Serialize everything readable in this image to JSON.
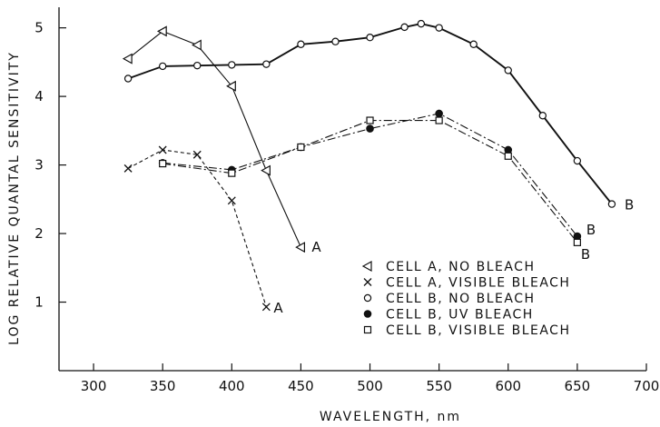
{
  "chart_data": {
    "type": "line",
    "xlabel": "WAVELENGTH, nm",
    "ylabel": "LOG RELATIVE QUANTAL SENSITIVITY",
    "xlim": [
      275,
      700
    ],
    "ylim": [
      0,
      5.3
    ],
    "xticks": [
      300,
      350,
      400,
      450,
      500,
      550,
      600,
      650,
      700
    ],
    "yticks": [
      1,
      2,
      3,
      4,
      5
    ],
    "grid": false,
    "legend_position": "bottom-right",
    "series": [
      {
        "name": "CELL A, NO BLEACH",
        "marker": "triangle-left-open",
        "line": "solid-thin",
        "color": "#111111",
        "end_label": "A",
        "x": [
          325,
          350,
          375,
          400,
          425,
          450
        ],
        "y": [
          4.55,
          4.95,
          4.75,
          4.15,
          2.92,
          1.8
        ]
      },
      {
        "name": "CELL A, VISIBLE BLEACH",
        "marker": "x",
        "line": "dashed",
        "color": "#111111",
        "end_label": "A",
        "x": [
          325,
          350,
          375,
          400,
          425
        ],
        "y": [
          2.95,
          3.22,
          3.15,
          2.48,
          0.93
        ]
      },
      {
        "name": "CELL B, NO BLEACH",
        "marker": "circle-open",
        "line": "solid-thick",
        "color": "#111111",
        "end_label": "B",
        "x": [
          325,
          350,
          375,
          400,
          425,
          450,
          475,
          500,
          525,
          537,
          550,
          575,
          600,
          625,
          650,
          675
        ],
        "y": [
          4.26,
          4.44,
          4.45,
          4.46,
          4.47,
          4.76,
          4.8,
          4.86,
          5.01,
          5.06,
          5.0,
          4.76,
          4.38,
          3.72,
          3.06,
          2.43
        ]
      },
      {
        "name": "CELL B, UV BLEACH",
        "marker": "circle-filled",
        "line": "dashdot",
        "color": "#111111",
        "end_label": "B",
        "x": [
          350,
          400,
          450,
          500,
          550,
          600,
          650
        ],
        "y": [
          3.03,
          2.93,
          3.26,
          3.53,
          3.75,
          3.22,
          1.96
        ]
      },
      {
        "name": "CELL B, VISIBLE BLEACH",
        "marker": "square-open",
        "line": "dashdot",
        "color": "#111111",
        "end_label": "B",
        "x": [
          350,
          400,
          450,
          500,
          550,
          600,
          650
        ],
        "y": [
          3.02,
          2.88,
          3.26,
          3.65,
          3.65,
          3.13,
          1.87
        ]
      }
    ]
  }
}
